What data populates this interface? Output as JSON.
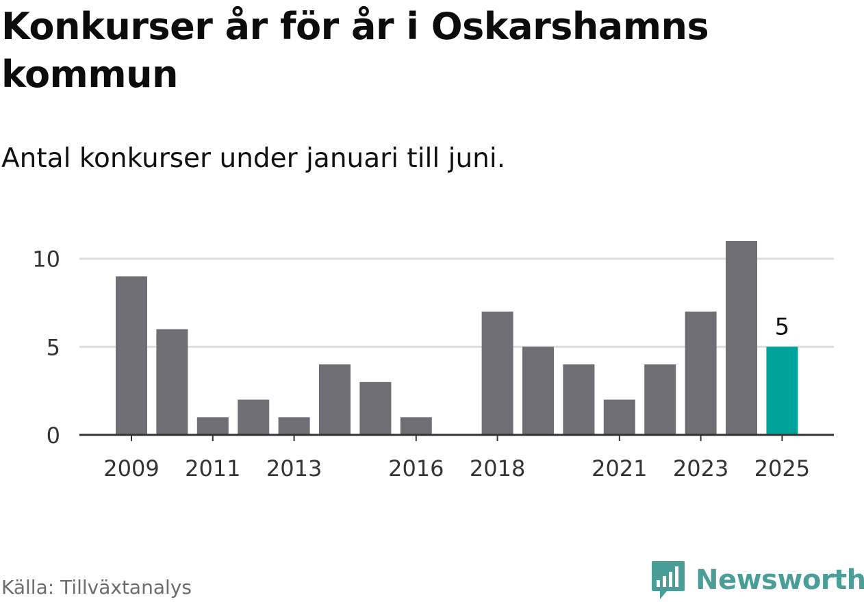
{
  "title": "Konkurser år för år i Oskarshamns kommun",
  "subtitle": "Antal konkurser under januari till juni.",
  "source": "Källa: Tillväxtanalys",
  "brand": {
    "name": "Newsworthy",
    "logo_icon": "newsworthy-chart-bubble-icon",
    "color": "#4a9e97"
  },
  "colors": {
    "bar": "#6f6e74",
    "highlight": "#00a39a",
    "grid": "#dddddd",
    "axis": "#333333",
    "tick_text": "#333333"
  },
  "chart_data": {
    "type": "bar",
    "title": "Konkurser år för år i Oskarshamns kommun",
    "subtitle": "Antal konkurser under januari till juni.",
    "xlabel": "",
    "ylabel": "",
    "categories": [
      "2009",
      "2010",
      "2011",
      "2012",
      "2013",
      "2014",
      "2015",
      "2016",
      "2017",
      "2018",
      "2019",
      "2020",
      "2021",
      "2022",
      "2023",
      "2024",
      "2025"
    ],
    "values": [
      9,
      6,
      1,
      2,
      1,
      4,
      3,
      1,
      0,
      7,
      5,
      4,
      2,
      4,
      7,
      11,
      5
    ],
    "x_tick_labels": [
      "2009",
      "2011",
      "2013",
      "2016",
      "2018",
      "2021",
      "2023",
      "2025"
    ],
    "y_ticks": [
      0,
      5,
      10
    ],
    "ylim": [
      0,
      11
    ],
    "grid": true,
    "legend": "none",
    "highlight": {
      "category": "2025",
      "label": "5"
    }
  }
}
